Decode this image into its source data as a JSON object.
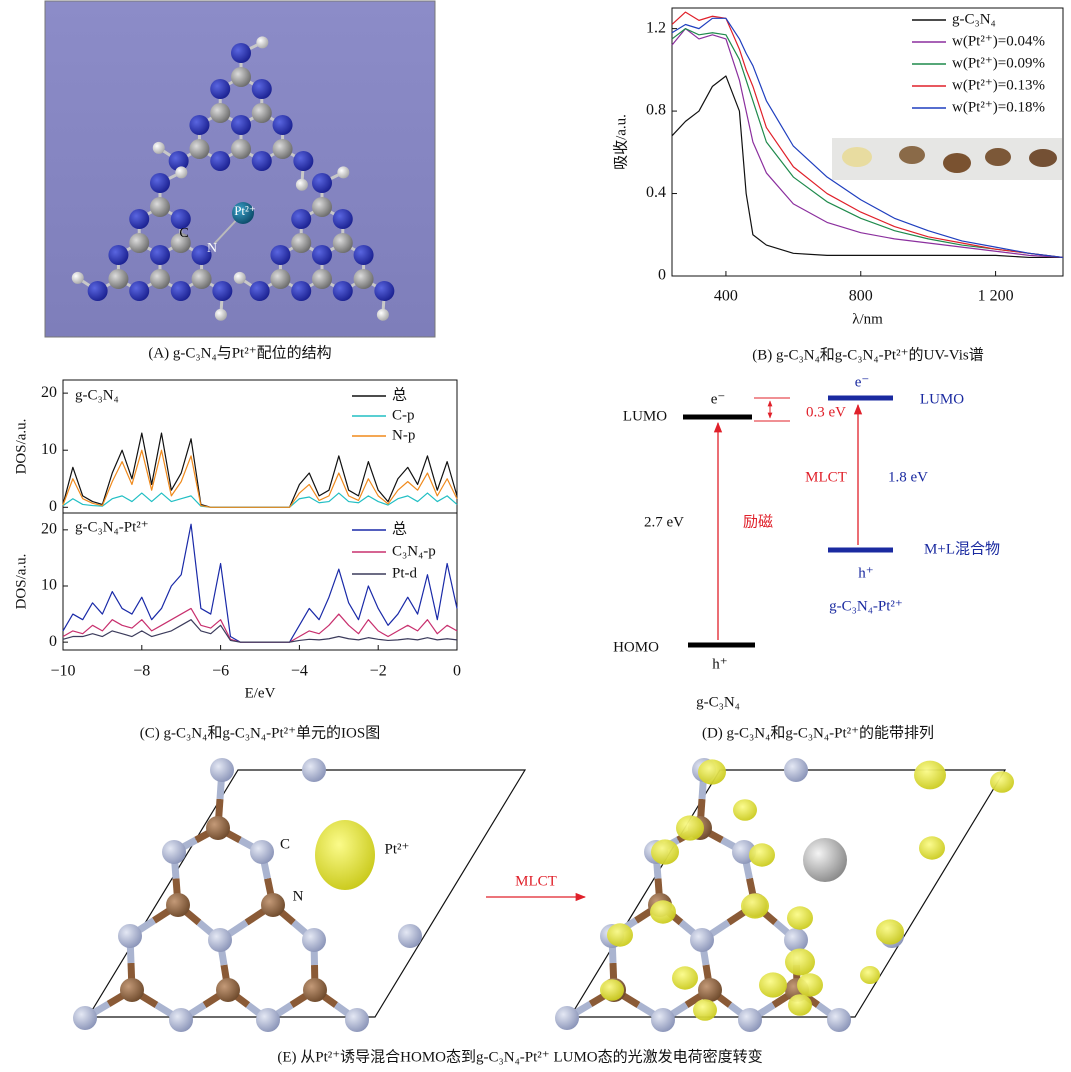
{
  "panel_a": {
    "pt_label": "Pt²⁺",
    "c_label": "C",
    "n_label": "N"
  },
  "chart_data": [
    {
      "type": "line",
      "xlabel": "λ/nm",
      "ylabel": "吸收/a.u.",
      "x": [
        240,
        280,
        320,
        360,
        400,
        440,
        460,
        480,
        520,
        600,
        700,
        800,
        900,
        1000,
        1100,
        1200,
        1300,
        1400
      ],
      "series": [
        {
          "name": "g-C₃N₄",
          "color": "#111111",
          "values": [
            0.68,
            0.75,
            0.8,
            0.92,
            0.97,
            0.8,
            0.4,
            0.2,
            0.15,
            0.11,
            0.1,
            0.1,
            0.1,
            0.1,
            0.1,
            0.1,
            0.09,
            0.09
          ]
        },
        {
          "name": "w(Pt²⁺)=0.04%",
          "color": "#8b2f9e",
          "values": [
            1.12,
            1.2,
            1.15,
            1.17,
            1.15,
            0.95,
            0.8,
            0.65,
            0.5,
            0.35,
            0.26,
            0.21,
            0.18,
            0.16,
            0.14,
            0.12,
            0.1,
            0.09
          ]
        },
        {
          "name": "w(Pt²⁺)=0.09%",
          "color": "#1f8a4c",
          "values": [
            1.15,
            1.2,
            1.17,
            1.18,
            1.17,
            1.05,
            0.95,
            0.85,
            0.65,
            0.48,
            0.36,
            0.28,
            0.22,
            0.18,
            0.15,
            0.13,
            0.11,
            0.09
          ]
        },
        {
          "name": "w(Pt²⁺)=0.13%",
          "color": "#e0202a",
          "values": [
            1.22,
            1.28,
            1.24,
            1.26,
            1.25,
            1.1,
            1.0,
            0.92,
            0.72,
            0.53,
            0.4,
            0.31,
            0.24,
            0.19,
            0.16,
            0.13,
            0.11,
            0.09
          ]
        },
        {
          "name": "w(Pt²⁺)=0.18%",
          "color": "#1f3fbf",
          "values": [
            1.18,
            1.22,
            1.2,
            1.25,
            1.25,
            1.15,
            1.08,
            1.02,
            0.85,
            0.63,
            0.48,
            0.37,
            0.28,
            0.22,
            0.17,
            0.14,
            0.11,
            0.09
          ]
        }
      ],
      "xlim": [
        240,
        1400
      ],
      "ylim": [
        0,
        1.3
      ],
      "xticks": [
        400,
        800,
        {
          "value": 1200,
          "label": "1 200"
        }
      ],
      "yticks": [
        0,
        0.4,
        0.8,
        1.2
      ]
    },
    {
      "type": "line",
      "label": "g-C₃N₄",
      "ylabel": "DOS/a.u.",
      "x": [
        -10,
        -9.75,
        -9.5,
        -9.25,
        -9,
        -8.75,
        -8.5,
        -8.25,
        -8,
        -7.75,
        -7.5,
        -7.25,
        -7,
        -6.75,
        -6.5,
        -6.25,
        -6,
        -5.75,
        -5.5,
        -5.25,
        -5,
        -4.75,
        -4.5,
        -4.25,
        -4,
        -3.75,
        -3.5,
        -3.25,
        -3,
        -2.75,
        -2.5,
        -2.25,
        -2,
        -1.75,
        -1.5,
        -1.25,
        -1,
        -0.75,
        -0.5,
        -0.25,
        0
      ],
      "series": [
        {
          "name": "总",
          "color": "#111111",
          "values": [
            0.5,
            7,
            2,
            1,
            0.5,
            6,
            10,
            5,
            13,
            4,
            13,
            3,
            6,
            12,
            0.5,
            0,
            0,
            0,
            0,
            0,
            0,
            0,
            0,
            0,
            4,
            6,
            2,
            3,
            9,
            3,
            2,
            8,
            3,
            1,
            5,
            7,
            4,
            9,
            3,
            8,
            2
          ]
        },
        {
          "name": "C-p",
          "color": "#22bfc4",
          "values": [
            0.3,
            1.5,
            0.5,
            0.3,
            0.2,
            1.5,
            2,
            1,
            2.5,
            1,
            2.5,
            1,
            1.5,
            2,
            0.2,
            0,
            0,
            0,
            0,
            0,
            0,
            0,
            0,
            0,
            1.5,
            1.8,
            0.8,
            1,
            2.5,
            1,
            0.8,
            2,
            1,
            0.4,
            1.5,
            2,
            1,
            2.5,
            1,
            2,
            0.5
          ]
        },
        {
          "name": "N-p",
          "color": "#f08a1c",
          "values": [
            0.4,
            5,
            1.5,
            0.7,
            0.3,
            4.5,
            8,
            4,
            10,
            3,
            10,
            2,
            4.5,
            9,
            0.3,
            0,
            0,
            0,
            0,
            0,
            0,
            0,
            0,
            0,
            2.5,
            4,
            1.2,
            2,
            6,
            2,
            1.2,
            5,
            2,
            0.6,
            3,
            4.5,
            3,
            6,
            2,
            5,
            1.5
          ]
        }
      ],
      "xlim": [
        -10,
        0
      ],
      "ylim": [
        -1,
        22.3
      ],
      "yticks": [
        0,
        10,
        20
      ]
    },
    {
      "type": "line",
      "label": "g-C₃N₄-Pt²⁺",
      "ylabel": "DOS/a.u.",
      "xlabel": "E/eV",
      "x": [
        -10,
        -9.75,
        -9.5,
        -9.25,
        -9,
        -8.75,
        -8.5,
        -8.25,
        -8,
        -7.75,
        -7.5,
        -7.25,
        -7,
        -6.75,
        -6.5,
        -6.25,
        -6,
        -5.75,
        -5.5,
        -5.25,
        -5,
        -4.75,
        -4.5,
        -4.25,
        -4,
        -3.75,
        -3.5,
        -3.25,
        -3,
        -2.75,
        -2.5,
        -2.25,
        -2,
        -1.75,
        -1.5,
        -1.25,
        -1,
        -0.75,
        -0.5,
        -0.25,
        0
      ],
      "series": [
        {
          "name": "总",
          "color": "#1a2aa8",
          "values": [
            2,
            5,
            4,
            7,
            5,
            9,
            6,
            5,
            8,
            4,
            6,
            10,
            12,
            21,
            6,
            5,
            14,
            1,
            0,
            0,
            0,
            0,
            0,
            0,
            3,
            6,
            4,
            8,
            13,
            7,
            4,
            10,
            6,
            3,
            5,
            8,
            5,
            12,
            4,
            14,
            6
          ]
        },
        {
          "name": "C₃N₄-p",
          "color": "#c8306e",
          "values": [
            1,
            2,
            1.5,
            3,
            2,
            4,
            3,
            2.5,
            4,
            2,
            3,
            4,
            5,
            6,
            3,
            2.5,
            4,
            0.5,
            0,
            0,
            0,
            0,
            0,
            0,
            1,
            2,
            1.5,
            3,
            5,
            3,
            1.5,
            4,
            2,
            1,
            2,
            3,
            2,
            4,
            1.5,
            3,
            2
          ]
        },
        {
          "name": "Pt-d",
          "color": "#3c3c5c",
          "values": [
            0.5,
            1,
            1,
            1.5,
            1,
            2,
            1.5,
            1,
            2,
            1,
            1.5,
            2,
            3,
            4,
            2,
            1.5,
            3,
            0.3,
            0,
            0,
            0,
            0,
            0,
            0,
            0.3,
            0.5,
            0.4,
            0.6,
            1,
            0.6,
            0.4,
            0.8,
            0.5,
            0.3,
            0.4,
            0.6,
            0.4,
            0.8,
            0.4,
            0.6,
            0.4
          ]
        }
      ],
      "xlim": [
        -10,
        0
      ],
      "ylim": [
        -1.4,
        23
      ],
      "xticks": [
        {
          "value": -10,
          "label": "−10"
        },
        {
          "value": -8,
          "label": "−8"
        },
        {
          "value": -6,
          "label": "−6"
        },
        {
          "value": -4,
          "label": "−4"
        },
        {
          "value": -2,
          "label": "−2"
        },
        0
      ],
      "yticks": [
        0,
        10,
        20
      ]
    }
  ],
  "panel_d": {
    "left_lumo": "LUMO",
    "left_e": "e⁻",
    "gap_small": "0.3 eV",
    "right_e": "e⁻",
    "right_lumo": "LUMO",
    "mlct": "MLCT",
    "right_gap": "1.8 eV",
    "left_gap": "2.7 eV",
    "excitation": "励磁",
    "mixed": "M+L混合物",
    "right_h": "h⁺",
    "right_name": "g-C₃N₄-Pt²⁺",
    "left_homo": "HOMO",
    "left_h": "h⁺",
    "left_name": "g-C₃N₄"
  },
  "panel_e": {
    "c_label": "C",
    "n_label": "N",
    "pt_label": "Pt²⁺",
    "arrow_label": "MLCT"
  },
  "captions": {
    "a": "(A) g-C₃N₄与Pt²⁺配位的结构",
    "b": "(B) g-C₃N₄和g-C₃N₄-Pt²⁺的UV-Vis谱",
    "c": "(C) g-C₃N₄和g-C₃N₄-Pt²⁺单元的IOS图",
    "d": "(D) g-C₃N₄和g-C₃N₄-Pt²⁺的能带排列",
    "e": "(E) 从Pt²⁺诱导混合HOMO态到g-C₃N₄-Pt²⁺ LUMO态的光激发电荷密度转变"
  }
}
